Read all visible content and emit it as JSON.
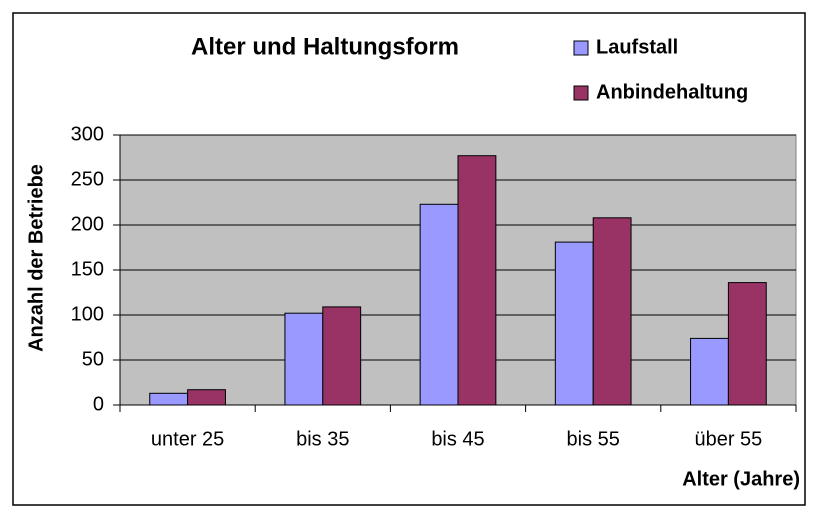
{
  "chart_data": {
    "type": "bar",
    "title": "Alter und Haltungsform",
    "x_label": "Alter (Jahre)",
    "y_label": "Anzahl der Betriebe",
    "categories": [
      "unter 25",
      "bis 35",
      "bis 45",
      "bis 55",
      "über 55"
    ],
    "series": [
      {
        "name": "Laufstall",
        "color": "#9999ff",
        "values": [
          13,
          102,
          223,
          181,
          74
        ]
      },
      {
        "name": "Anbindehaltung",
        "color": "#993366",
        "values": [
          17,
          109,
          277,
          208,
          136
        ]
      }
    ],
    "ylim": [
      0,
      300
    ],
    "yticks": [
      0,
      50,
      100,
      150,
      200,
      250,
      300
    ],
    "grid": true,
    "legend": "top-right"
  }
}
